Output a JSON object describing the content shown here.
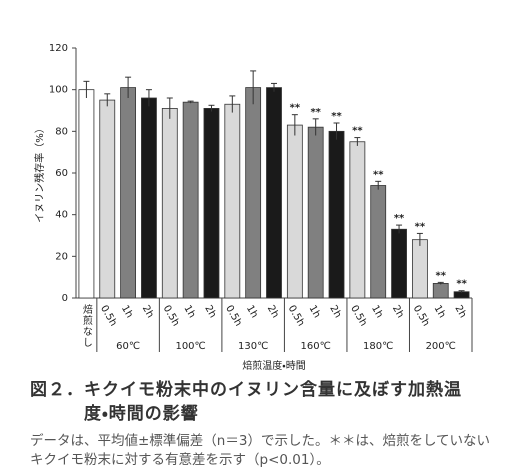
{
  "chart_data": {
    "type": "grouped-bar",
    "y_label": "イヌリン残存率（%）",
    "x_label": "焙煎温度・時間",
    "ylim": [
      0,
      120
    ],
    "yticks": [
      0,
      20,
      40,
      60,
      80,
      100,
      120
    ],
    "colors": [
      "#d9d9d9",
      "#808080",
      "#1a1a1a"
    ],
    "control": {
      "label": "焙煎なし",
      "value": 100,
      "error": 4,
      "color": "#ffffff"
    },
    "groups": [
      {
        "label": "60℃",
        "categories": [
          "0.5h",
          "1h",
          "2h"
        ],
        "values": [
          95,
          101,
          96
        ],
        "errors": [
          3,
          5,
          4
        ]
      },
      {
        "label": "100℃",
        "categories": [
          "0.5h",
          "1h",
          "2h"
        ],
        "values": [
          91,
          94,
          91
        ],
        "errors": [
          5,
          0.5,
          1.5
        ]
      },
      {
        "label": "130℃",
        "categories": [
          "0.5h",
          "1h",
          "2h"
        ],
        "values": [
          93,
          101,
          101
        ],
        "errors": [
          4,
          8,
          2
        ]
      },
      {
        "label": "160℃",
        "categories": [
          "0.5h",
          "1h",
          "2h"
        ],
        "values": [
          83,
          82,
          80
        ],
        "errors": [
          5,
          4,
          4
        ],
        "marks": [
          "**",
          "**",
          "**"
        ]
      },
      {
        "label": "180℃",
        "categories": [
          "0.5h",
          "1h",
          "2h"
        ],
        "values": [
          75,
          54,
          33
        ],
        "errors": [
          2,
          2,
          2
        ],
        "marks": [
          "**",
          "**",
          "**"
        ]
      },
      {
        "label": "200℃",
        "categories": [
          "0.5h",
          "1h",
          "2h"
        ],
        "values": [
          28,
          7,
          3
        ],
        "errors": [
          3,
          0.5,
          0.5
        ],
        "marks": [
          "**",
          "**",
          "**"
        ]
      }
    ]
  },
  "caption": {
    "number": "図２．",
    "title": "キクイモ粉末中のイヌリン含量に及ぼす加熱温度・時間の影響",
    "note": "データは、平均値±標準偏差（n＝3）で示した。＊＊は、焙煎をしていないキクイモ粉末に対する有意差を示す（p<0.01）。"
  }
}
